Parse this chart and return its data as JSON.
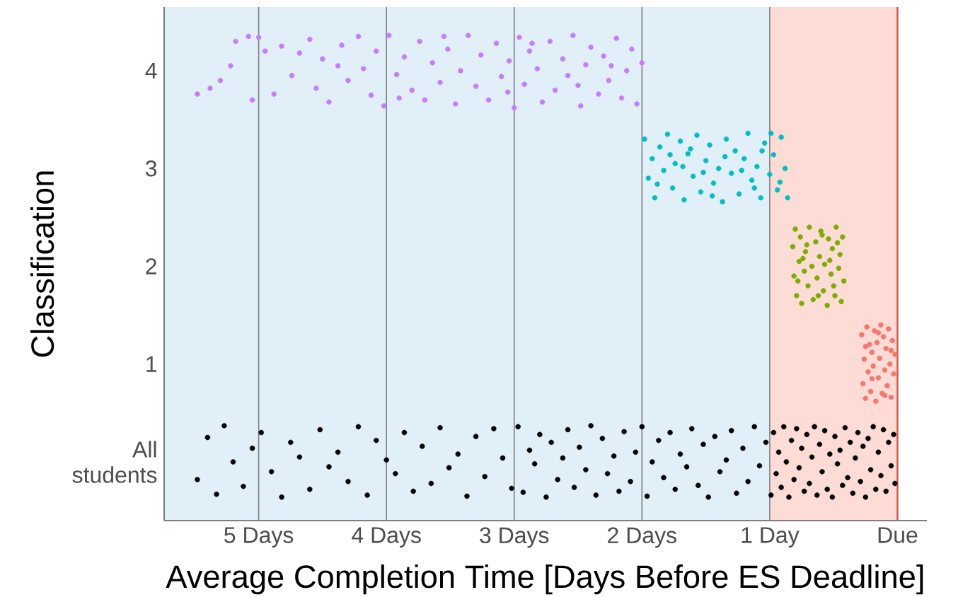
{
  "chart_data": {
    "type": "scatter",
    "xlabel": "Average Completion Time [Days Before ES Deadline]",
    "ylabel": "Classification",
    "xlim": [
      5.74,
      -0.23
    ],
    "ylim": [
      -0.6,
      4.65
    ],
    "xticks": [
      {
        "value": 5,
        "label": "5 Days"
      },
      {
        "value": 4,
        "label": "4 Days"
      },
      {
        "value": 3,
        "label": "3 Days"
      },
      {
        "value": 2,
        "label": "2 Days"
      },
      {
        "value": 1,
        "label": "1 Day"
      },
      {
        "value": 0,
        "label": "Due"
      }
    ],
    "yticks": [
      {
        "value": 0,
        "label": "All students"
      },
      1,
      2,
      3,
      4
    ],
    "grid": "x",
    "marker": "circle",
    "bands": [
      {
        "axis": "x",
        "from": 5.74,
        "to": 1,
        "color": "#e1eff9"
      },
      {
        "axis": "x",
        "from": 1,
        "to": 0,
        "color": "#fddcd6"
      }
    ],
    "ref_lines": [
      {
        "axis": "x",
        "value": 0,
        "color": "#e8483f"
      }
    ],
    "series": [
      {
        "color": "#c77cff",
        "x": [
          5.48,
          5.38,
          5.3,
          5.22,
          5.18,
          5.08,
          5.05,
          5.0,
          4.95,
          4.88,
          4.82,
          4.74,
          4.68,
          4.6,
          4.55,
          4.5,
          4.45,
          4.38,
          4.35,
          4.3,
          4.22,
          4.18,
          4.12,
          4.08,
          4.02,
          3.98,
          3.92,
          3.86,
          3.8,
          3.74,
          3.7,
          3.64,
          3.58,
          3.52,
          3.46,
          3.42,
          3.36,
          3.3,
          3.26,
          3.2,
          3.14,
          3.1,
          3.04,
          3.0,
          2.96,
          2.92,
          2.88,
          2.82,
          2.78,
          2.72,
          2.68,
          2.62,
          2.58,
          2.54,
          2.48,
          2.44,
          2.4,
          2.34,
          2.3,
          2.26,
          2.2,
          2.16,
          2.12,
          2.08,
          2.04,
          2.0,
          3.05,
          2.86,
          2.5,
          2.24,
          3.55,
          3.9
        ],
        "values": [
          3.76,
          3.82,
          3.9,
          4.05,
          4.3,
          4.35,
          3.7,
          4.34,
          4.2,
          3.76,
          4.25,
          3.95,
          4.18,
          4.32,
          3.82,
          4.12,
          3.68,
          4.05,
          4.26,
          3.9,
          4.35,
          4.02,
          3.75,
          4.2,
          3.64,
          4.36,
          3.96,
          4.14,
          3.8,
          4.3,
          3.7,
          4.08,
          3.88,
          4.22,
          3.66,
          4.0,
          4.36,
          3.84,
          4.16,
          3.7,
          4.28,
          3.94,
          4.1,
          3.62,
          4.34,
          3.86,
          4.2,
          4.02,
          3.68,
          4.3,
          3.8,
          4.12,
          3.95,
          4.36,
          3.64,
          4.06,
          4.24,
          3.76,
          4.15,
          3.9,
          4.33,
          3.72,
          4.0,
          4.22,
          3.66,
          4.08,
          3.78,
          4.28,
          3.85,
          4.05,
          4.35,
          3.72
        ]
      },
      {
        "color": "#00bfc4",
        "x": [
          1.98,
          1.95,
          1.92,
          1.9,
          1.86,
          1.83,
          1.8,
          1.76,
          1.74,
          1.7,
          1.67,
          1.64,
          1.6,
          1.57,
          1.54,
          1.5,
          1.47,
          1.44,
          1.4,
          1.37,
          1.34,
          1.3,
          1.27,
          1.24,
          1.2,
          1.17,
          1.14,
          1.1,
          1.07,
          1.04,
          1.0,
          0.97,
          0.94,
          0.91,
          0.88,
          0.86,
          1.88,
          1.62,
          1.35,
          1.12,
          0.99,
          1.52,
          1.78,
          1.22,
          0.92,
          1.45,
          1.68,
          1.06
        ],
        "values": [
          3.3,
          2.9,
          3.1,
          2.7,
          3.22,
          2.98,
          3.35,
          2.8,
          3.05,
          3.28,
          2.68,
          3.15,
          2.92,
          3.34,
          2.76,
          3.08,
          3.24,
          2.85,
          3.0,
          2.66,
          3.3,
          2.95,
          3.18,
          2.74,
          3.1,
          3.36,
          2.88,
          3.02,
          2.7,
          3.26,
          2.94,
          3.14,
          2.78,
          3.32,
          3.0,
          2.7,
          2.84,
          3.2,
          3.12,
          2.8,
          3.36,
          2.96,
          3.14,
          2.98,
          2.86,
          2.72,
          3.02,
          3.18
        ]
      },
      {
        "color": "#7cae00",
        "x": [
          0.82,
          0.81,
          0.8,
          0.79,
          0.77,
          0.76,
          0.75,
          0.73,
          0.72,
          0.7,
          0.69,
          0.67,
          0.66,
          0.64,
          0.63,
          0.61,
          0.6,
          0.58,
          0.57,
          0.55,
          0.54,
          0.52,
          0.51,
          0.49,
          0.48,
          0.46,
          0.45,
          0.44,
          0.43,
          0.42,
          0.78,
          0.71,
          0.62,
          0.53,
          0.47,
          0.74,
          0.59,
          0.5
        ],
        "values": [
          2.2,
          1.9,
          2.38,
          1.7,
          2.05,
          2.3,
          1.62,
          1.95,
          2.15,
          1.8,
          2.4,
          2.0,
          1.66,
          2.25,
          1.88,
          2.1,
          2.36,
          1.75,
          2.02,
          1.6,
          2.28,
          1.92,
          2.18,
          1.7,
          2.4,
          1.98,
          2.12,
          1.64,
          2.3,
          1.85,
          1.85,
          2.22,
          1.7,
          2.06,
          2.24,
          2.08,
          2.32,
          1.8
        ]
      },
      {
        "color": "#f8766d",
        "x": [
          0.28,
          0.27,
          0.26,
          0.25,
          0.24,
          0.23,
          0.22,
          0.21,
          0.2,
          0.19,
          0.18,
          0.17,
          0.16,
          0.15,
          0.14,
          0.13,
          0.12,
          0.11,
          0.1,
          0.09,
          0.08,
          0.07,
          0.06,
          0.05,
          0.04,
          0.03,
          0.02,
          0.25,
          0.2,
          0.15,
          0.1,
          0.05
        ],
        "values": [
          1.3,
          0.8,
          1.05,
          0.65,
          1.38,
          0.92,
          1.2,
          0.72,
          1.12,
          0.98,
          1.34,
          0.62,
          1.22,
          0.86,
          1.06,
          1.4,
          0.7,
          1.28,
          0.94,
          1.16,
          0.78,
          1.36,
          1.0,
          0.66,
          1.24,
          0.9,
          1.1,
          1.18,
          0.85,
          1.32,
          0.68,
          1.14
        ]
      },
      {
        "color": "#000000",
        "x": [
          5.48,
          5.4,
          5.33,
          5.27,
          5.2,
          5.12,
          5.05,
          4.98,
          4.9,
          4.82,
          4.75,
          4.68,
          4.6,
          4.52,
          4.45,
          4.38,
          4.3,
          4.22,
          4.15,
          4.08,
          4.0,
          3.93,
          3.86,
          3.79,
          3.72,
          3.65,
          3.58,
          3.51,
          3.44,
          3.37,
          3.3,
          3.23,
          3.16,
          3.09,
          3.02,
          2.97,
          2.93,
          2.88,
          2.84,
          2.8,
          2.75,
          2.71,
          2.66,
          2.62,
          2.58,
          2.53,
          2.49,
          2.44,
          2.4,
          2.36,
          2.31,
          2.27,
          2.22,
          2.18,
          2.14,
          2.09,
          2.05,
          2.0,
          1.96,
          1.92,
          1.87,
          1.83,
          1.78,
          1.74,
          1.7,
          1.65,
          1.61,
          1.56,
          1.52,
          1.48,
          1.43,
          1.39,
          1.34,
          1.3,
          1.26,
          1.21,
          1.17,
          1.12,
          1.08,
          1.03,
          0.99,
          0.97,
          0.95,
          0.93,
          0.91,
          0.89,
          0.87,
          0.85,
          0.83,
          0.81,
          0.79,
          0.77,
          0.75,
          0.73,
          0.71,
          0.69,
          0.67,
          0.65,
          0.63,
          0.61,
          0.59,
          0.57,
          0.55,
          0.53,
          0.51,
          0.49,
          0.47,
          0.45,
          0.43,
          0.41,
          0.39,
          0.37,
          0.35,
          0.33,
          0.31,
          0.29,
          0.27,
          0.25,
          0.23,
          0.21,
          0.19,
          0.17,
          0.15,
          0.13,
          0.11,
          0.09,
          0.07,
          0.05,
          0.03,
          0.02
        ],
        "values": [
          -0.18,
          0.25,
          -0.33,
          0.37,
          0.0,
          -0.25,
          0.14,
          0.3,
          -0.1,
          -0.36,
          0.2,
          0.05,
          -0.28,
          0.33,
          -0.05,
          0.1,
          -0.2,
          0.36,
          -0.34,
          0.22,
          0.02,
          -0.12,
          0.3,
          -0.3,
          0.16,
          -0.22,
          0.35,
          -0.06,
          0.08,
          -0.35,
          0.26,
          -0.15,
          0.34,
          0.04,
          -0.27,
          0.36,
          -0.31,
          0.12,
          -0.02,
          0.28,
          -0.36,
          0.2,
          -0.18,
          0.04,
          0.33,
          -0.26,
          0.15,
          -0.08,
          0.37,
          -0.34,
          0.24,
          -0.12,
          0.06,
          -0.3,
          0.31,
          -0.2,
          0.1,
          0.36,
          -0.35,
          0.0,
          0.22,
          -0.16,
          0.3,
          -0.28,
          0.08,
          -0.05,
          0.34,
          -0.24,
          0.18,
          -0.36,
          0.26,
          -0.1,
          0.02,
          0.32,
          -0.32,
          0.14,
          -0.2,
          0.36,
          -0.04,
          0.2,
          -0.34,
          0.3,
          -0.12,
          0.1,
          -0.26,
          0.36,
          0.0,
          -0.36,
          0.22,
          -0.18,
          0.34,
          -0.06,
          0.14,
          -0.3,
          0.28,
          -0.22,
          0.05,
          0.36,
          -0.34,
          0.18,
          -0.1,
          0.32,
          -0.28,
          0.08,
          -0.36,
          0.26,
          -0.02,
          0.12,
          -0.24,
          0.35,
          -0.16,
          0.2,
          -0.32,
          0.04,
          0.3,
          -0.2,
          0.16,
          -0.36,
          0.24,
          -0.08,
          0.36,
          -0.28,
          0.1,
          -0.14,
          0.33,
          -0.3,
          0.2,
          -0.04,
          0.28,
          -0.22
        ]
      }
    ]
  }
}
